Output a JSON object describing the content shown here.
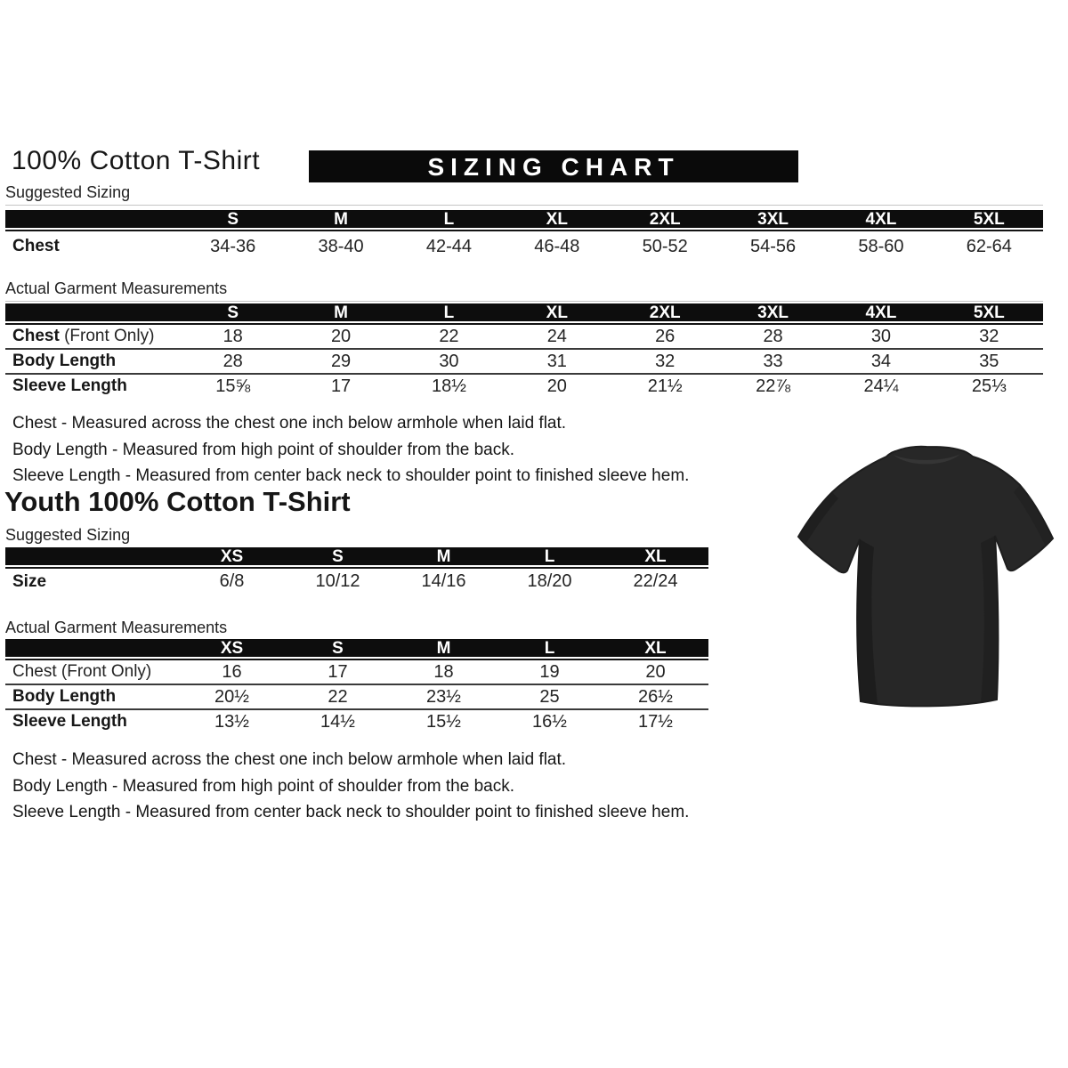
{
  "page": {
    "title": "100% Cotton T-Shirt",
    "banner": "SIZING CHART",
    "youth_title": "Youth 100% Cotton T-Shirt"
  },
  "colors": {
    "banner_bg": "#0a0a0a",
    "table_header_bg": "#0d0d0d",
    "row_separator": "#3a3a3a",
    "text": "#1c1c1c",
    "label_hairline": "#c4c4c4",
    "tshirt": "#272727",
    "background": "#ffffff"
  },
  "adult": {
    "suggested_label": "Suggested Sizing",
    "actual_label": "Actual Garment Measurements",
    "suggested": {
      "columns": [
        "S",
        "M",
        "L",
        "XL",
        "2XL",
        "3XL",
        "4XL",
        "5XL"
      ],
      "rows": [
        {
          "label": "Chest",
          "suffix": "",
          "bold": true,
          "values": [
            "34-36",
            "38-40",
            "42-44",
            "46-48",
            "50-52",
            "54-56",
            "58-60",
            "62-64"
          ]
        }
      ]
    },
    "actual": {
      "columns": [
        "S",
        "M",
        "L",
        "XL",
        "2XL",
        "3XL",
        "4XL",
        "5XL"
      ],
      "rows": [
        {
          "label": "Chest",
          "suffix": " (Front Only)",
          "bold": true,
          "values": [
            "18",
            "20",
            "22",
            "24",
            "26",
            "28",
            "30",
            "32"
          ]
        },
        {
          "label": "Body Length",
          "suffix": "",
          "bold": true,
          "values": [
            "28",
            "29",
            "30",
            "31",
            "32",
            "33",
            "34",
            "35"
          ]
        },
        {
          "label": "Sleeve Length",
          "suffix": "",
          "bold": true,
          "values": [
            "15⅝",
            "17",
            "18½",
            "20",
            "21½",
            "22⅞",
            "24¼",
            "25⅓"
          ]
        }
      ]
    },
    "notes": [
      "Chest - Measured across the chest one inch below armhole when laid flat.",
      "Body Length - Measured from high point of shoulder from the back.",
      "Sleeve Length - Measured from center back neck to shoulder point to finished sleeve hem."
    ]
  },
  "youth": {
    "suggested_label": "Suggested Sizing",
    "actual_label": "Actual Garment Measurements",
    "suggested": {
      "columns": [
        "XS",
        "S",
        "M",
        "L",
        "XL"
      ],
      "rows": [
        {
          "label": "Size",
          "suffix": "",
          "bold": true,
          "values": [
            "6/8",
            "10/12",
            "14/16",
            "18/20",
            "22/24"
          ]
        }
      ]
    },
    "actual": {
      "columns": [
        "XS",
        "S",
        "M",
        "L",
        "XL"
      ],
      "rows": [
        {
          "label": "Chest (Front Only)",
          "suffix": "",
          "bold": false,
          "values": [
            "16",
            "17",
            "18",
            "19",
            "20"
          ]
        },
        {
          "label": "Body Length",
          "suffix": "",
          "bold": true,
          "values": [
            "20½",
            "22",
            "23½",
            "25",
            "26½"
          ]
        },
        {
          "label": "Sleeve Length",
          "suffix": "",
          "bold": true,
          "values": [
            "13½",
            "14½",
            "15½",
            "16½",
            "17½"
          ]
        }
      ]
    },
    "notes": [
      "Chest - Measured across the chest one inch below armhole when laid flat.",
      "Body Length - Measured from high point of shoulder from the back.",
      "Sleeve Length - Measured from center back neck to shoulder point to finished sleeve hem."
    ]
  }
}
